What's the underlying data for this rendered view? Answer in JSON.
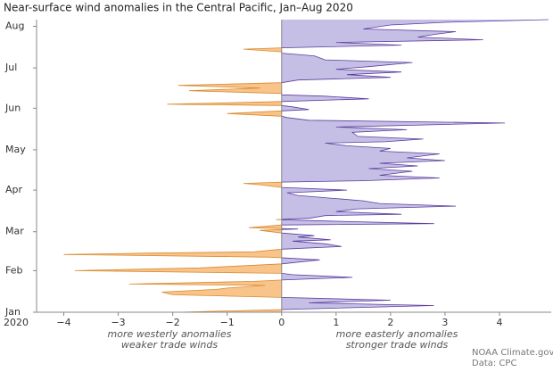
{
  "chart_data": {
    "type": "area-horizontal",
    "title": "Near-surface wind anomalies in the Central Pacific, Jan–Aug 2020",
    "year_label": "2020",
    "annotations": {
      "left": [
        "more westerly anomalies",
        "weaker trade winds"
      ],
      "right": [
        "more easterly anomalies",
        "stronger trade winds"
      ]
    },
    "credits": [
      "NOAA Climate.gov",
      "Data: CPC"
    ],
    "positive_color": "#c5bfe6",
    "positive_line": "#5b3d9e",
    "negative_color": "#f9c48a",
    "negative_line": "#d98a2f",
    "xlim": [
      -4.5,
      4.95
    ],
    "xticks": [
      {
        "value": -4,
        "label": "−4"
      },
      {
        "value": -3,
        "label": "−3"
      },
      {
        "value": -2,
        "label": "−2"
      },
      {
        "value": -1,
        "label": "−1"
      },
      0,
      1,
      2,
      3,
      4
    ],
    "ylim": [
      0,
      218
    ],
    "yticks": [
      {
        "value": 0,
        "label": "Jan"
      },
      {
        "value": 31,
        "label": "Feb"
      },
      {
        "value": 60,
        "label": "Mar"
      },
      {
        "value": 91,
        "label": "Apr"
      },
      {
        "value": 121,
        "label": "May"
      },
      {
        "value": 152,
        "label": "Jun"
      },
      {
        "value": 182,
        "label": "Jul"
      },
      {
        "value": 213,
        "label": "Aug"
      }
    ],
    "y": [
      0,
      2,
      5,
      7,
      9,
      11,
      13,
      15,
      17,
      18,
      20,
      21,
      23,
      24,
      26,
      28,
      29,
      31,
      33,
      34,
      36,
      39,
      41,
      43,
      44,
      45,
      47,
      49,
      51,
      53,
      54,
      56,
      57,
      59,
      61,
      62,
      63,
      65,
      66,
      68,
      69,
      70,
      72,
      73,
      75,
      77,
      79,
      81,
      83,
      85,
      87,
      89,
      91,
      93,
      95,
      96,
      97,
      98,
      100,
      102,
      105,
      107,
      109,
      111,
      113,
      115,
      118,
      120,
      122,
      124,
      126,
      127,
      129,
      131,
      134,
      136,
      138,
      141,
      143,
      145,
      146,
      148,
      150,
      151,
      153,
      154,
      155,
      156,
      157,
      159,
      161,
      162,
      163,
      165,
      167,
      169,
      171,
      173,
      175,
      177,
      179,
      181,
      183,
      186,
      188,
      191,
      193,
      194,
      196,
      197,
      199,
      201,
      203,
      205,
      207,
      209,
      211,
      214,
      216,
      218
    ],
    "values": [
      -1.9,
      0,
      2.8,
      0.5,
      2.0,
      0,
      -2.0,
      -2.2,
      -1.2,
      -1.0,
      -0.3,
      -2.8,
      -0.5,
      0,
      1.3,
      0.2,
      0,
      -3.8,
      -1.5,
      -1.0,
      0,
      0.7,
      -0.2,
      -4.0,
      -2.5,
      -0.5,
      0,
      1.1,
      0.8,
      0.2,
      0.9,
      0.3,
      0.6,
      0,
      -0.4,
      0.3,
      -0.6,
      0,
      2.8,
      0.8,
      -0.1,
      0.5,
      0.8,
      2.2,
      1.0,
      1.4,
      3.2,
      1.8,
      1.5,
      0.9,
      0.3,
      0.1,
      1.2,
      0,
      -0.4,
      -0.7,
      0,
      1.5,
      2.9,
      1.8,
      2.4,
      1.6,
      2.5,
      1.8,
      3.0,
      2.3,
      2.9,
      1.8,
      2.0,
      1.2,
      0.8,
      1.9,
      2.6,
      1.4,
      1.3,
      2.3,
      1.0,
      4.1,
      0.5,
      0.1,
      0,
      -1.0,
      0,
      0.5,
      0.2,
      0,
      -2.1,
      -1.0,
      0,
      1.6,
      0.8,
      0,
      0,
      -1.7,
      -0.4,
      -1.9,
      0,
      0.3,
      2.0,
      1.2,
      2.2,
      1.0,
      1.6,
      2.4,
      0.8,
      0.6,
      0,
      0,
      -0.7,
      0,
      2.2,
      1.0,
      3.7,
      2.5,
      2.8,
      3.2,
      1.5,
      2.0,
      3.0,
      4.9
    ]
  }
}
